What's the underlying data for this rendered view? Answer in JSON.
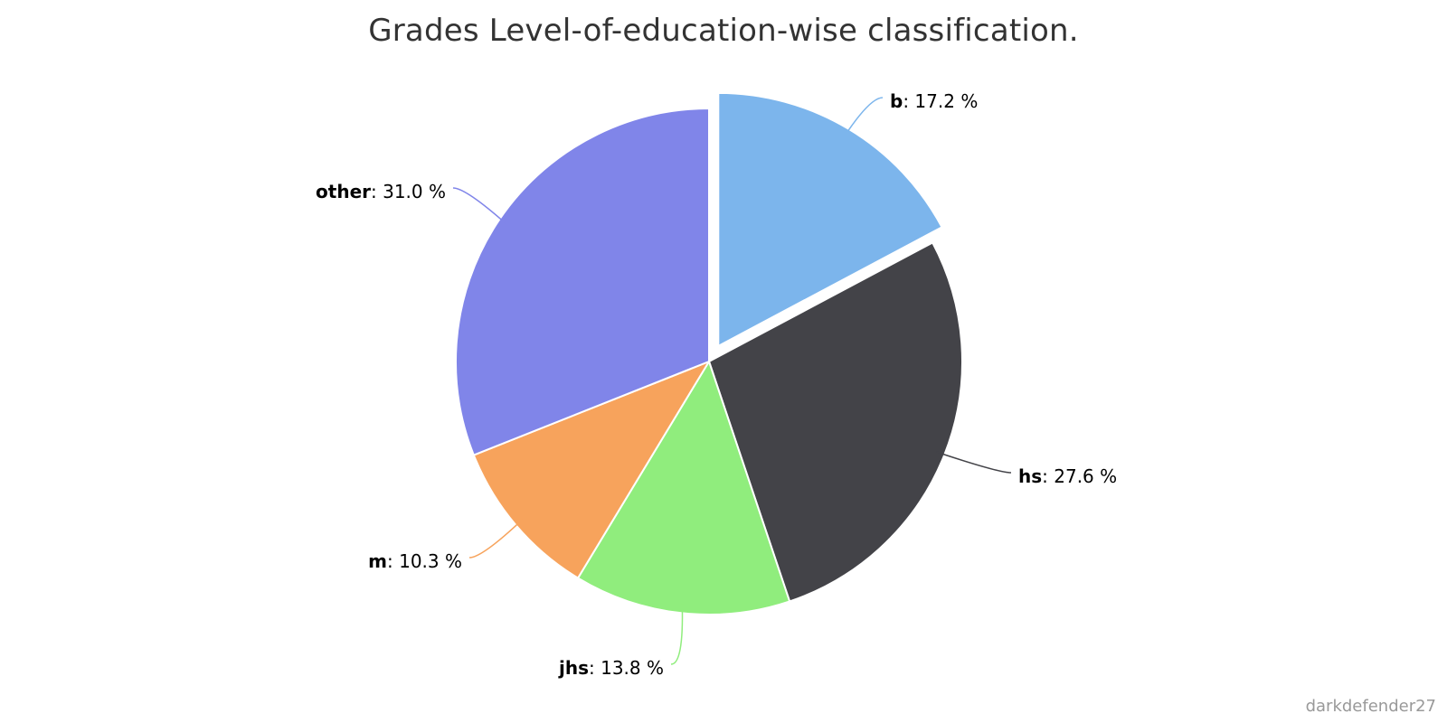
{
  "chart_data": {
    "type": "pie",
    "title": "Grades Level-of-education-wise classification.",
    "value_suffix": " %",
    "series": [
      {
        "name": "b",
        "value": 17.2,
        "label": "17.2",
        "color": "#7cb5ec",
        "sliced": true
      },
      {
        "name": "hs",
        "value": 27.6,
        "label": "27.6",
        "color": "#434348",
        "sliced": false
      },
      {
        "name": "jhs",
        "value": 13.8,
        "label": "13.8",
        "color": "#90ed7d",
        "sliced": false
      },
      {
        "name": "m",
        "value": 10.3,
        "label": "10.3",
        "color": "#f7a35c",
        "sliced": false
      },
      {
        "name": "other",
        "value": 31.0,
        "label": "31.0",
        "color": "#8085e9",
        "sliced": false
      }
    ]
  },
  "credit": "darkdefender27"
}
